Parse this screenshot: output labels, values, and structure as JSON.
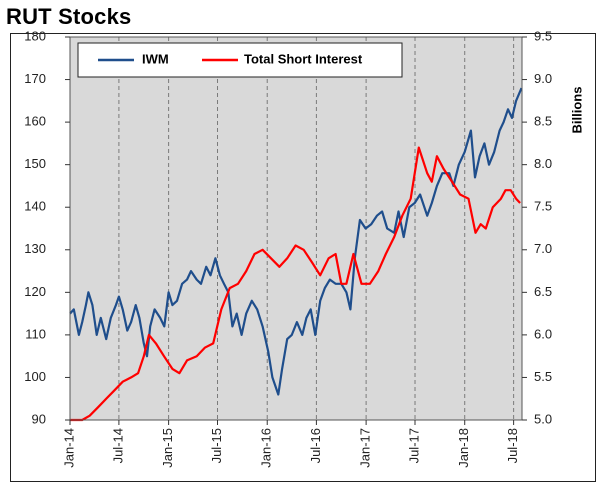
{
  "title": "RUT Stocks",
  "chart_data": {
    "type": "line",
    "title": "RUT Stocks",
    "xlabel": "",
    "ylabel": "",
    "y2label": "Billions",
    "ylim": [
      90,
      180
    ],
    "y2lim": [
      5.0,
      9.5
    ],
    "yticks": [
      "90",
      "100",
      "110",
      "120",
      "130",
      "140",
      "150",
      "160",
      "170",
      "180"
    ],
    "y2ticks": [
      "5.0",
      "5.5",
      "6.0",
      "6.5",
      "7.0",
      "7.5",
      "8.0",
      "8.5",
      "9.0",
      "9.5"
    ],
    "xticks": [
      "Jan-14",
      "Jul-14",
      "Jan-15",
      "Jul-15",
      "Jan-16",
      "Jul-16",
      "Jan-17",
      "Jul-17",
      "Jan-18",
      "Jul-18"
    ],
    "xrange": [
      "2014-01",
      "2018-08"
    ],
    "grid": "vertical",
    "legend_position": "top",
    "series": [
      {
        "name": "IWM",
        "axis": "left",
        "color": "#1f4e8c",
        "points": [
          [
            "2014-01-01",
            115
          ],
          [
            "2014-01-15",
            116
          ],
          [
            "2014-02-03",
            110
          ],
          [
            "2014-02-15",
            113
          ],
          [
            "2014-03-01",
            117
          ],
          [
            "2014-03-10",
            120
          ],
          [
            "2014-03-25",
            117
          ],
          [
            "2014-04-10",
            110
          ],
          [
            "2014-04-25",
            114
          ],
          [
            "2014-05-15",
            109
          ],
          [
            "2014-06-01",
            114
          ],
          [
            "2014-06-20",
            117
          ],
          [
            "2014-07-01",
            119
          ],
          [
            "2014-07-15",
            116
          ],
          [
            "2014-08-01",
            111
          ],
          [
            "2014-08-15",
            113
          ],
          [
            "2014-09-01",
            117
          ],
          [
            "2014-09-15",
            114
          ],
          [
            "2014-10-01",
            108
          ],
          [
            "2014-10-13",
            105
          ],
          [
            "2014-10-25",
            112
          ],
          [
            "2014-11-10",
            116
          ],
          [
            "2014-12-01",
            114
          ],
          [
            "2014-12-16",
            112
          ],
          [
            "2015-01-01",
            120
          ],
          [
            "2015-01-15",
            117
          ],
          [
            "2015-02-01",
            118
          ],
          [
            "2015-02-20",
            122
          ],
          [
            "2015-03-10",
            123
          ],
          [
            "2015-03-25",
            125
          ],
          [
            "2015-04-15",
            123
          ],
          [
            "2015-05-01",
            122
          ],
          [
            "2015-05-20",
            126
          ],
          [
            "2015-06-05",
            124
          ],
          [
            "2015-06-23",
            128
          ],
          [
            "2015-07-10",
            124
          ],
          [
            "2015-07-25",
            122
          ],
          [
            "2015-08-10",
            120
          ],
          [
            "2015-08-25",
            112
          ],
          [
            "2015-09-10",
            115
          ],
          [
            "2015-09-28",
            110
          ],
          [
            "2015-10-15",
            115
          ],
          [
            "2015-11-05",
            118
          ],
          [
            "2015-11-25",
            116
          ],
          [
            "2015-12-15",
            112
          ],
          [
            "2016-01-05",
            106
          ],
          [
            "2016-01-20",
            100
          ],
          [
            "2016-02-11",
            96
          ],
          [
            "2016-02-25",
            102
          ],
          [
            "2016-03-15",
            109
          ],
          [
            "2016-04-01",
            110
          ],
          [
            "2016-04-20",
            113
          ],
          [
            "2016-05-10",
            110
          ],
          [
            "2016-05-25",
            114
          ],
          [
            "2016-06-10",
            116
          ],
          [
            "2016-06-27",
            110
          ],
          [
            "2016-07-15",
            118
          ],
          [
            "2016-08-01",
            121
          ],
          [
            "2016-08-20",
            123
          ],
          [
            "2016-09-10",
            122
          ],
          [
            "2016-10-01",
            122
          ],
          [
            "2016-10-20",
            120
          ],
          [
            "2016-11-04",
            116
          ],
          [
            "2016-11-20",
            128
          ],
          [
            "2016-12-09",
            137
          ],
          [
            "2016-12-30",
            135
          ],
          [
            "2017-01-20",
            136
          ],
          [
            "2017-02-10",
            138
          ],
          [
            "2017-03-01",
            139
          ],
          [
            "2017-03-20",
            135
          ],
          [
            "2017-04-15",
            134
          ],
          [
            "2017-05-01",
            139
          ],
          [
            "2017-05-20",
            133
          ],
          [
            "2017-06-10",
            140
          ],
          [
            "2017-06-30",
            141
          ],
          [
            "2017-07-20",
            143
          ],
          [
            "2017-08-15",
            138
          ],
          [
            "2017-09-01",
            141
          ],
          [
            "2017-09-20",
            145
          ],
          [
            "2017-10-10",
            148
          ],
          [
            "2017-11-05",
            148
          ],
          [
            "2017-11-20",
            145
          ],
          [
            "2017-12-10",
            150
          ],
          [
            "2018-01-01",
            153
          ],
          [
            "2018-01-24",
            158
          ],
          [
            "2018-02-08",
            147
          ],
          [
            "2018-02-25",
            152
          ],
          [
            "2018-03-15",
            155
          ],
          [
            "2018-04-01",
            150
          ],
          [
            "2018-04-20",
            153
          ],
          [
            "2018-05-10",
            158
          ],
          [
            "2018-05-25",
            160
          ],
          [
            "2018-06-10",
            163
          ],
          [
            "2018-06-25",
            161
          ],
          [
            "2018-07-10",
            165
          ],
          [
            "2018-07-30",
            168
          ]
        ]
      },
      {
        "name": "Total Short Interest",
        "axis": "right",
        "color": "#ff0000",
        "points": [
          [
            "2014-01-01",
            4.9
          ],
          [
            "2014-02-15",
            5.0
          ],
          [
            "2014-03-15",
            5.05
          ],
          [
            "2014-04-15",
            5.15
          ],
          [
            "2014-05-15",
            5.25
          ],
          [
            "2014-06-15",
            5.35
          ],
          [
            "2014-07-15",
            5.45
          ],
          [
            "2014-08-15",
            5.5
          ],
          [
            "2014-09-10",
            5.55
          ],
          [
            "2014-10-01",
            5.75
          ],
          [
            "2014-10-20",
            6.0
          ],
          [
            "2014-11-15",
            5.9
          ],
          [
            "2014-12-15",
            5.75
          ],
          [
            "2015-01-15",
            5.6
          ],
          [
            "2015-02-10",
            5.55
          ],
          [
            "2015-03-10",
            5.7
          ],
          [
            "2015-04-15",
            5.75
          ],
          [
            "2015-05-15",
            5.85
          ],
          [
            "2015-06-15",
            5.9
          ],
          [
            "2015-07-15",
            6.3
          ],
          [
            "2015-08-15",
            6.55
          ],
          [
            "2015-09-15",
            6.6
          ],
          [
            "2015-10-15",
            6.75
          ],
          [
            "2015-11-15",
            6.95
          ],
          [
            "2015-12-15",
            7.0
          ],
          [
            "2016-01-15",
            6.9
          ],
          [
            "2016-02-15",
            6.8
          ],
          [
            "2016-03-15",
            6.9
          ],
          [
            "2016-04-15",
            7.05
          ],
          [
            "2016-05-15",
            7.0
          ],
          [
            "2016-06-15",
            6.85
          ],
          [
            "2016-07-15",
            6.7
          ],
          [
            "2016-08-15",
            6.9
          ],
          [
            "2016-09-10",
            6.95
          ],
          [
            "2016-10-01",
            6.6
          ],
          [
            "2016-10-20",
            6.6
          ],
          [
            "2016-11-15",
            6.95
          ],
          [
            "2016-12-15",
            6.6
          ],
          [
            "2017-01-15",
            6.6
          ],
          [
            "2017-02-15",
            6.75
          ],
          [
            "2017-03-15",
            6.95
          ],
          [
            "2017-04-15",
            7.15
          ],
          [
            "2017-05-15",
            7.4
          ],
          [
            "2017-06-15",
            7.6
          ],
          [
            "2017-07-15",
            8.2
          ],
          [
            "2017-08-15",
            7.9
          ],
          [
            "2017-09-01",
            7.8
          ],
          [
            "2017-09-20",
            8.1
          ],
          [
            "2017-10-15",
            7.95
          ],
          [
            "2017-11-15",
            7.8
          ],
          [
            "2017-12-15",
            7.65
          ],
          [
            "2018-01-15",
            7.6
          ],
          [
            "2018-02-10",
            7.2
          ],
          [
            "2018-03-01",
            7.3
          ],
          [
            "2018-03-20",
            7.25
          ],
          [
            "2018-04-15",
            7.5
          ],
          [
            "2018-05-15",
            7.6
          ],
          [
            "2018-06-01",
            7.7
          ],
          [
            "2018-06-20",
            7.7
          ],
          [
            "2018-07-10",
            7.6
          ],
          [
            "2018-07-25",
            7.55
          ]
        ]
      }
    ]
  }
}
